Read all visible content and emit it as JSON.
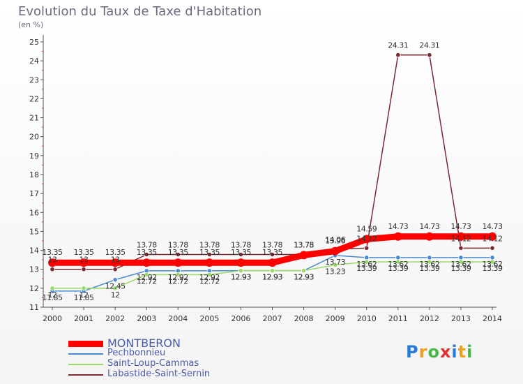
{
  "chart_data": {
    "type": "line",
    "title": "Evolution du Taux de Taxe d'Habitation",
    "subtitle": "(en %)",
    "x": [
      "2000",
      "2001",
      "2002",
      "2003",
      "2004",
      "2005",
      "2006",
      "2007",
      "2008",
      "2009",
      "2010",
      "2011",
      "2012",
      "2013",
      "2014"
    ],
    "ylim": [
      11,
      25
    ],
    "yticks": [
      "11",
      "12",
      "13",
      "14",
      "15",
      "16",
      "17",
      "18",
      "19",
      "20",
      "21",
      "22",
      "23",
      "24",
      "25"
    ],
    "grid": false,
    "legend_position": "bottom-left",
    "series": [
      {
        "name": "MONTBERON",
        "color": "#ff0000",
        "values": [
          13.35,
          13.35,
          13.35,
          13.35,
          13.35,
          13.35,
          13.35,
          13.35,
          13.75,
          13.96,
          14.59,
          14.73,
          14.73,
          14.73,
          14.73
        ],
        "labels": [
          "13.35",
          "13.35",
          "13.35",
          "13.35",
          "13.35",
          "13.35",
          "13.35",
          "13.35",
          "13.75",
          "13.96",
          "14.59",
          "14.73",
          "14.73",
          "14.73",
          "14.73"
        ]
      },
      {
        "name": "Pechbonnieu",
        "color": "#4a8ad0",
        "values": [
          11.85,
          11.85,
          12.45,
          12.92,
          12.92,
          12.92,
          12.93,
          12.93,
          12.93,
          13.73,
          13.62,
          13.62,
          13.62,
          13.62,
          13.62
        ],
        "labels": [
          "11.85",
          "11.85",
          "12.45",
          "12.92",
          "12.92",
          "12.92",
          "12.93",
          "12.93",
          "12.93",
          "13.73",
          "13.62",
          "13.62",
          "13.62",
          "13.62",
          "13.62"
        ]
      },
      {
        "name": "Saint-Loup-Cammas",
        "color": "#9ad86a",
        "values": [
          12,
          12,
          12,
          12.72,
          12.72,
          12.72,
          12.93,
          12.93,
          12.93,
          13.23,
          13.39,
          13.39,
          13.39,
          13.39,
          13.39
        ],
        "labels": [
          "12",
          "12",
          "12",
          "12.72",
          "12.72",
          "12.72",
          "12.93",
          "12.93",
          "12.93",
          "13.23",
          "13.39",
          "13.39",
          "13.39",
          "13.39",
          "13.39"
        ]
      },
      {
        "name": "Labastide-Saint-Sernin",
        "color": "#7a2a32",
        "values": [
          13,
          13,
          13,
          13.78,
          13.78,
          13.78,
          13.78,
          13.78,
          13.78,
          14.06,
          14.12,
          24.31,
          24.31,
          14.12,
          14.12
        ],
        "labels": [
          "13",
          "13",
          "13",
          "13.78",
          "13.78",
          "13.78",
          "13.78",
          "13.78",
          "13.78",
          "14.06",
          "14.12",
          "24.31",
          "24.31",
          "14.12",
          "14.12"
        ]
      }
    ]
  },
  "legend": {
    "items": [
      {
        "label": "MONTBERON",
        "color": "#ff0000"
      },
      {
        "label": "Pechbonnieu",
        "color": "#4a8ad0"
      },
      {
        "label": "Saint-Loup-Cammas",
        "color": "#9ad86a"
      },
      {
        "label": "Labastide-Saint-Sernin",
        "color": "#7a2a32"
      }
    ]
  },
  "logo": {
    "letters": [
      "P",
      "r",
      "o",
      "x",
      "i",
      "t",
      "i"
    ],
    "colors": [
      "#2a7ad8",
      "#f0a020",
      "#4ab848",
      "#e03030",
      "#2a7ad8",
      "#f0a020",
      "#4ab848"
    ]
  }
}
